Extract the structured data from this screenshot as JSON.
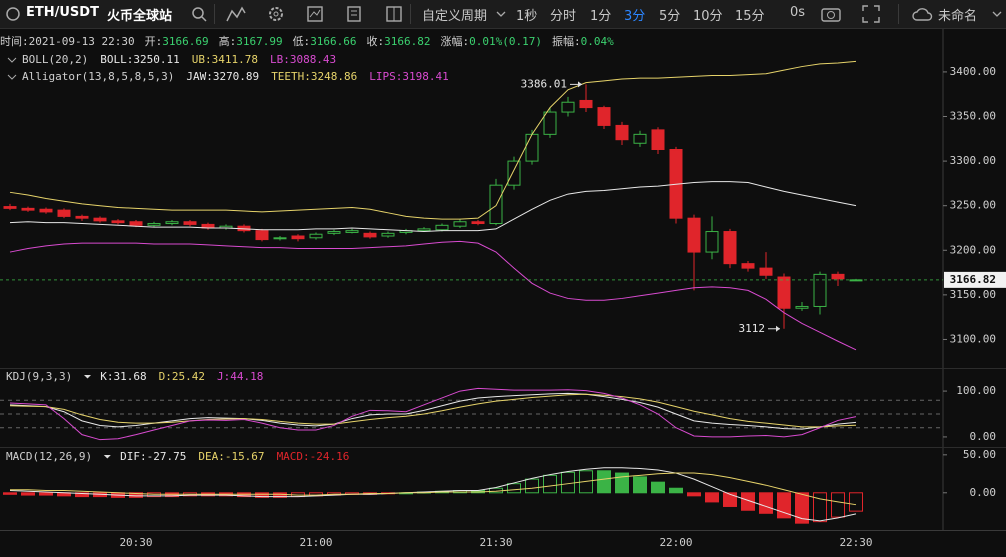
{
  "toolbar": {
    "symbol": "ETH/USDT",
    "exchange": "火币全球站",
    "period_menu": "自定义周期",
    "periods": [
      "1秒",
      "分时",
      "1分",
      "3分",
      "5分",
      "10分",
      "15分"
    ],
    "active_period": "3分",
    "countdown": "0s",
    "layout_name": "未命名"
  },
  "info": {
    "time_label": "时间:",
    "time": "2021-09-13 22:30",
    "items": [
      {
        "label": "开:",
        "value": "3166.69"
      },
      {
        "label": "高:",
        "value": "3167.99"
      },
      {
        "label": "低:",
        "value": "3166.66"
      },
      {
        "label": "收:",
        "value": "3166.82"
      },
      {
        "label": "涨幅:",
        "value": "0.01%(0.17)"
      },
      {
        "label": "振幅:",
        "value": "0.04%"
      }
    ]
  },
  "chart_data": [
    {
      "type": "candlestick",
      "categories": [
        null,
        null,
        null,
        null,
        null,
        null,
        null,
        "20:30",
        null,
        null,
        null,
        null,
        null,
        null,
        null,
        null,
        null,
        "21:00",
        null,
        null,
        null,
        null,
        null,
        null,
        null,
        null,
        null,
        "21:30",
        null,
        null,
        null,
        null,
        null,
        null,
        null,
        null,
        null,
        "22:00",
        null,
        null,
        null,
        null,
        null,
        null,
        null,
        null,
        null,
        "22:30"
      ],
      "open": [
        3249,
        3247,
        3246,
        3245,
        3238,
        3236,
        3233,
        3232,
        3228,
        3230,
        3232,
        3229,
        3225,
        3227,
        3222,
        3213,
        3216,
        3214,
        3219,
        3220,
        3219,
        3216,
        3220,
        3222,
        3223,
        3227,
        3232,
        3230,
        3273,
        3300,
        3330,
        3355,
        3368,
        3360,
        3340,
        3320,
        3335,
        3313,
        3236,
        3198,
        3221,
        3185,
        3180,
        3170,
        3135,
        3137,
        3173,
        3166.69
      ],
      "high": [
        3252,
        3249,
        3248,
        3247,
        3240,
        3238,
        3235,
        3234,
        3232,
        3234,
        3234,
        3231,
        3229,
        3229,
        3224,
        3216,
        3218,
        3220,
        3223,
        3224,
        3221,
        3221,
        3224,
        3226,
        3230,
        3235,
        3234,
        3280,
        3305,
        3335,
        3360,
        3372,
        3386.01,
        3362,
        3344,
        3334,
        3338,
        3316,
        3240,
        3238,
        3224,
        3188,
        3198,
        3174,
        3142,
        3176,
        3176,
        3167.99
      ],
      "low": [
        3245,
        3243,
        3241,
        3236,
        3233,
        3231,
        3229,
        3226,
        3226,
        3228,
        3227,
        3223,
        3223,
        3220,
        3210,
        3211,
        3210,
        3212,
        3217,
        3219,
        3213,
        3214,
        3218,
        3221,
        3221,
        3225,
        3228,
        3228,
        3268,
        3296,
        3326,
        3350,
        3355,
        3336,
        3318,
        3316,
        3308,
        3230,
        3155,
        3190,
        3180,
        3176,
        3168,
        3112,
        3132,
        3128,
        3160,
        3166.66
      ],
      "close": [
        3247,
        3245,
        3243,
        3238,
        3236,
        3233,
        3231,
        3228,
        3230,
        3232,
        3229,
        3225,
        3227,
        3222,
        3212,
        3214,
        3213,
        3218,
        3221,
        3222,
        3215,
        3219,
        3222,
        3224,
        3228,
        3232,
        3230,
        3273,
        3300,
        3330,
        3355,
        3366,
        3360,
        3340,
        3324,
        3330,
        3313,
        3236,
        3198,
        3221,
        3185,
        3180,
        3172,
        3135,
        3137,
        3173,
        3168,
        3166.82
      ],
      "up_color": "#3bb346",
      "down_color": "#e0252b",
      "price_line": true,
      "ylim": [
        3068,
        3447
      ],
      "yticks": [
        {
          "value": 3100,
          "label": "3100.00"
        },
        {
          "value": 3150,
          "label": "3150.00"
        },
        {
          "value": 3200,
          "label": "3200.00"
        },
        {
          "value": 3250,
          "label": "3250.00"
        },
        {
          "value": 3300,
          "label": "3300.00"
        },
        {
          "value": 3350,
          "label": "3350.00"
        },
        {
          "value": 3400,
          "label": "3400.00"
        }
      ],
      "series": [
        {
          "color": "#e6d36a",
          "values": [
            3265,
            3262,
            3258,
            3255,
            3252,
            3250,
            3248,
            3247,
            3246,
            3245,
            3245,
            3245,
            3245,
            3244,
            3243,
            3244,
            3245,
            3246,
            3247,
            3248,
            3246,
            3242,
            3238,
            3236,
            3235,
            3235,
            3236,
            3250,
            3290,
            3330,
            3360,
            3380,
            3388,
            3390,
            3392,
            3393,
            3393,
            3394,
            3395,
            3396,
            3396,
            3397,
            3398,
            3402,
            3406,
            3409,
            3410,
            3411.78
          ]
        },
        {
          "color": "#e8e8e8",
          "values": [
            3231,
            3232,
            3231,
            3231,
            3230,
            3229,
            3228,
            3227,
            3226,
            3226,
            3226,
            3225,
            3225,
            3224,
            3223,
            3223,
            3223,
            3224,
            3224,
            3225,
            3224,
            3223,
            3222,
            3221,
            3222,
            3222,
            3222,
            3224,
            3235,
            3246,
            3256,
            3263,
            3266,
            3267,
            3269,
            3271,
            3272,
            3274,
            3276,
            3277,
            3277,
            3276,
            3271,
            3266,
            3262,
            3258,
            3254,
            3250.11
          ]
        },
        {
          "color": "#d84bd0",
          "values": [
            3198,
            3202,
            3205,
            3207,
            3208,
            3208,
            3208,
            3208,
            3207,
            3207,
            3207,
            3206,
            3205,
            3204,
            3203,
            3203,
            3202,
            3202,
            3202,
            3202,
            3203,
            3204,
            3205,
            3207,
            3209,
            3210,
            3208,
            3198,
            3180,
            3163,
            3152,
            3146,
            3144,
            3144,
            3146,
            3149,
            3152,
            3155,
            3158,
            3159,
            3158,
            3155,
            3145,
            3130,
            3118,
            3108,
            3098,
            3088.43
          ]
        }
      ],
      "indicators": [
        {
          "name": "BOLL(20,2)",
          "values": [
            {
              "text": "BOLL:3250.11",
              "color": "#e8e8e8"
            },
            {
              "text": "UB:3411.78",
              "color": "#e6d36a"
            },
            {
              "text": "LB:3088.43",
              "color": "#d84bd0"
            }
          ]
        },
        {
          "name": "Alligator(13,8,5,8,5,3)",
          "values": [
            {
              "text": "JAW:3270.89",
              "color": "#e8e8e8"
            },
            {
              "text": "TEETH:3248.86",
              "color": "#e6d36a"
            },
            {
              "text": "LIPS:3198.41",
              "color": "#d84bd0"
            }
          ]
        }
      ]
    },
    {
      "type": "line",
      "ylim": [
        -22,
        146
      ],
      "yticks": [
        {
          "value": 0,
          "label": "0.00"
        },
        {
          "value": 100,
          "label": "100.00"
        }
      ],
      "levels": [
        20,
        50,
        80
      ],
      "series": [
        {
          "color": "#e8e8e8",
          "values": [
            70,
            68,
            66,
            55,
            35,
            25,
            22,
            25,
            30,
            35,
            40,
            42,
            41,
            40,
            36,
            30,
            26,
            24,
            28,
            40,
            48,
            50,
            50,
            58,
            68,
            78,
            85,
            88,
            90,
            92,
            94,
            95,
            93,
            88,
            82,
            75,
            65,
            50,
            35,
            30,
            27,
            25,
            22,
            18,
            17,
            22,
            28,
            31.68
          ]
        },
        {
          "color": "#e6d36a",
          "values": [
            68,
            67,
            66,
            60,
            48,
            38,
            32,
            30,
            30,
            32,
            35,
            38,
            39,
            40,
            38,
            34,
            30,
            28,
            28,
            33,
            38,
            42,
            45,
            50,
            57,
            65,
            72,
            78,
            82,
            86,
            89,
            92,
            93,
            91,
            88,
            83,
            76,
            66,
            56,
            48,
            40,
            34,
            30,
            26,
            22,
            22,
            24,
            25.42
          ]
        },
        {
          "color": "#d84bd0",
          "values": [
            74,
            72,
            70,
            40,
            5,
            -6,
            -4,
            5,
            15,
            25,
            35,
            37,
            36,
            38,
            30,
            20,
            15,
            15,
            25,
            45,
            58,
            57,
            55,
            70,
            85,
            100,
            106,
            104,
            102,
            102,
            102,
            103,
            101,
            95,
            85,
            70,
            50,
            20,
            2,
            0,
            0,
            2,
            3,
            0,
            5,
            20,
            36,
            44.18
          ]
        }
      ],
      "indicators": [
        {
          "name": "KDJ(9,3,3)",
          "values": [
            {
              "text": "K:31.68",
              "color": "#e8e8e8"
            },
            {
              "text": "D:25.42",
              "color": "#e6d36a"
            },
            {
              "text": "J:44.18",
              "color": "#d84bd0"
            }
          ]
        }
      ]
    },
    {
      "type": "macd",
      "ylim": [
        -49,
        59
      ],
      "yticks": [
        {
          "value": 0,
          "label": "0.00"
        },
        {
          "value": 50,
          "label": "50.00"
        }
      ],
      "up_color": "#3bb346",
      "down_color": "#e0252b",
      "histogram": [
        -2,
        -3,
        -3,
        -4,
        -5,
        -5,
        -6,
        -6,
        -5,
        -5,
        -4,
        -4,
        -4,
        -5,
        -6,
        -6,
        -5,
        -4,
        -3,
        -2,
        -2,
        -1,
        0,
        1,
        2,
        3,
        3,
        6,
        12,
        18,
        23,
        27,
        29,
        29,
        26,
        21,
        14,
        6,
        -4,
        -12,
        -18,
        -23,
        -27,
        -33,
        -40,
        -38,
        -32,
        -24.16
      ],
      "series": [
        {
          "color": "#e8e8e8",
          "values": [
            3,
            2,
            1,
            0,
            -1,
            -2,
            -3,
            -4,
            -4,
            -4,
            -3,
            -3,
            -3,
            -4,
            -5,
            -5,
            -5,
            -4,
            -3,
            -2,
            -2,
            -1,
            0,
            1,
            2,
            3,
            3,
            7,
            13,
            19,
            24,
            28,
            31,
            33,
            33,
            32,
            30,
            26,
            18,
            8,
            -2,
            -10,
            -18,
            -26,
            -34,
            -37,
            -33,
            -27.75
          ]
        },
        {
          "color": "#e6d36a",
          "values": [
            4,
            4,
            3,
            3,
            2,
            1,
            0,
            -1,
            -2,
            -2,
            -2,
            -2,
            -2,
            -2,
            -2,
            -2,
            -3,
            -3,
            -2,
            -2,
            -1,
            -1,
            0,
            0,
            1,
            1,
            1,
            2,
            4,
            6,
            9,
            12,
            15,
            18,
            21,
            23,
            25,
            26,
            26,
            24,
            20,
            15,
            10,
            4,
            -2,
            -8,
            -12,
            -15.67
          ]
        }
      ],
      "indicators": [
        {
          "name": "MACD(12,26,9)",
          "values": [
            {
              "text": "DIF:-27.75",
              "color": "#e8e8e8"
            },
            {
              "text": "DEA:-15.67",
              "color": "#e6d36a"
            },
            {
              "text": "MACD:-24.16",
              "color": "#e0252b"
            }
          ]
        }
      ]
    }
  ]
}
